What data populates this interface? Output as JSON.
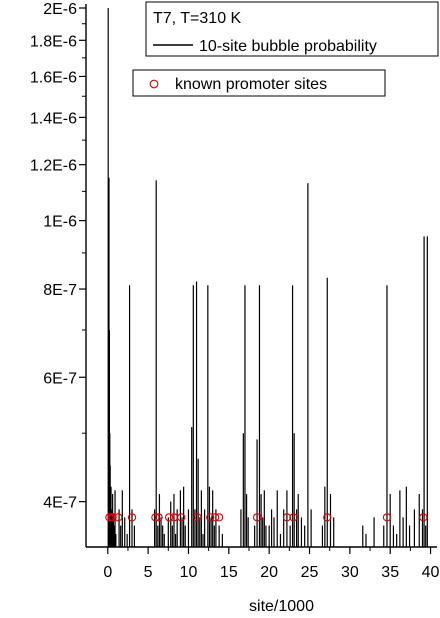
{
  "chart_data": {
    "type": "line",
    "title": "",
    "xlabel": "site/1000",
    "ylabel": "",
    "xlim": [
      -2.7,
      40.8
    ],
    "ylim": [
      3.45e-07,
      2e-06
    ],
    "y_scale": "log",
    "x_ticks": [
      0,
      5,
      10,
      15,
      20,
      25,
      30,
      35,
      40
    ],
    "x_tick_labels": [
      "0",
      "5",
      "10",
      "15",
      "20",
      "25",
      "30",
      "35",
      "40"
    ],
    "y_ticks": [
      4e-07,
      6e-07,
      8e-07,
      1e-06,
      1.2e-06,
      1.4e-06,
      1.6e-06,
      1.8e-06,
      2e-06
    ],
    "y_tick_labels": [
      "4E-7",
      "6E-7",
      "8E-7",
      "1E-6",
      "1.2E-6",
      "1.4E-6",
      "1.6E-6",
      "1.8E-6",
      "2E-6"
    ],
    "grid": false,
    "legend": {
      "placement": "top-right",
      "header": "T7, T=310 K",
      "entries": [
        "10-site bubble probability",
        "known promoter sites"
      ]
    },
    "series": [
      {
        "name": "10-site bubble probability",
        "kind": "spikes",
        "color": "#000000",
        "x": [
          0.05,
          0.1,
          0.15,
          0.2,
          0.25,
          0.3,
          0.35,
          0.4,
          0.5,
          0.6,
          0.7,
          0.8,
          0.9,
          1.0,
          1.4,
          1.6,
          1.8,
          2.1,
          2.4,
          2.7,
          3.0,
          3.3,
          5.8,
          6.0,
          6.2,
          6.4,
          6.6,
          6.8,
          7.0,
          7.5,
          7.8,
          8.0,
          8.2,
          8.4,
          8.6,
          9.0,
          9.2,
          9.4,
          9.6,
          10.0,
          10.4,
          10.6,
          10.8,
          11.0,
          11.2,
          11.4,
          11.6,
          11.8,
          12.0,
          12.4,
          12.6,
          12.8,
          13.0,
          13.2,
          13.4,
          13.8,
          14.2,
          16.5,
          16.8,
          17.0,
          17.2,
          17.4,
          18.2,
          18.5,
          18.8,
          19.0,
          19.2,
          19.4,
          19.6,
          20.0,
          20.3,
          20.6,
          21.0,
          21.4,
          21.8,
          22.2,
          22.6,
          22.9,
          23.1,
          23.4,
          23.6,
          24.0,
          24.4,
          24.8,
          25.2,
          26.6,
          26.9,
          27.2,
          27.6,
          28.0,
          31.6,
          32.0,
          33.0,
          34.2,
          34.6,
          35.0,
          35.4,
          35.8,
          36.2,
          36.6,
          37.0,
          37.4,
          38.0,
          38.6,
          39.0,
          39.2,
          39.4,
          39.6
        ],
        "y": [
          2e-06,
          6e-07,
          1.15e-06,
          7e-07,
          5e-07,
          4.5e-07,
          3.8e-07,
          4.2e-07,
          3.9e-07,
          4.1e-07,
          3.85e-07,
          3.7e-07,
          4.15e-07,
          3.6e-07,
          3.9e-07,
          3.7e-07,
          4.15e-07,
          3.8e-07,
          3.6e-07,
          8.1e-07,
          3.9e-07,
          3.7e-07,
          3.9e-07,
          1.14e-06,
          3.7e-07,
          4.1e-07,
          3.8e-07,
          3.7e-07,
          3.6e-07,
          3.8e-07,
          4e-07,
          3.7e-07,
          4.1e-07,
          3.6e-07,
          3.9e-07,
          4.15e-07,
          3.8e-07,
          4.2e-07,
          3.7e-07,
          3.9e-07,
          5.1e-07,
          8.1e-07,
          3.9e-07,
          8.2e-07,
          4.6e-07,
          3.8e-07,
          4.15e-07,
          3.6e-07,
          3.9e-07,
          8.1e-07,
          4.2e-07,
          3.8e-07,
          4.15e-07,
          3.7e-07,
          3.9e-07,
          3.7e-07,
          3.6e-07,
          3.9e-07,
          5e-07,
          8.1e-07,
          4.1e-07,
          3.8e-07,
          3.7e-07,
          4.9e-07,
          8.1e-07,
          4.1e-07,
          3.8e-07,
          4.15e-07,
          3.7e-07,
          3.7e-07,
          3.9e-07,
          3.8e-07,
          4.15e-07,
          3.6e-07,
          3.9e-07,
          4.15e-07,
          3.7e-07,
          8.1e-07,
          5e-07,
          3.9e-07,
          4.1e-07,
          3.8e-07,
          3.7e-07,
          1.13e-06,
          3.9e-07,
          3.7e-07,
          4.2e-07,
          8.3e-07,
          4.1e-07,
          3.8e-07,
          3.7e-07,
          3.6e-07,
          3.8e-07,
          3.7e-07,
          8.1e-07,
          4.1e-07,
          3.7e-07,
          3.6e-07,
          4.15e-07,
          3.8e-07,
          4.2e-07,
          3.7e-07,
          3.9e-07,
          4.1e-07,
          3.9e-07,
          9.5e-07,
          3.7e-07,
          9.5e-07
        ]
      },
      {
        "name": "known promoter sites",
        "kind": "markers",
        "color": "#e00000",
        "x": [
          0.2,
          0.45,
          0.6,
          1.3,
          3.0,
          5.9,
          6.3,
          7.6,
          8.2,
          9.1,
          11.1,
          12.7,
          13.3,
          13.8,
          18.5,
          22.2,
          23.0,
          27.2,
          34.6,
          39.1
        ],
        "y": [
          3.8e-07,
          3.8e-07,
          3.8e-07,
          3.8e-07,
          3.8e-07,
          3.8e-07,
          3.8e-07,
          3.8e-07,
          3.8e-07,
          3.8e-07,
          3.8e-07,
          3.8e-07,
          3.8e-07,
          3.8e-07,
          3.8e-07,
          3.8e-07,
          3.8e-07,
          3.8e-07,
          3.8e-07,
          3.8e-07
        ]
      }
    ]
  }
}
